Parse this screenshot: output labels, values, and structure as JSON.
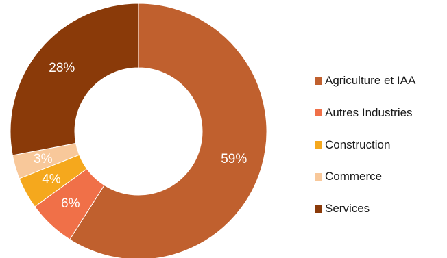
{
  "chart_data": {
    "type": "pie",
    "subtype": "donut",
    "title": "",
    "legend_position": "right",
    "slices": [
      {
        "name": "Agriculture et IAA",
        "value": 59,
        "label": "59%",
        "color": "#c0602e"
      },
      {
        "name": "Autres Industries",
        "value": 6,
        "label": "6%",
        "color": "#f07048"
      },
      {
        "name": "Construction",
        "value": 4,
        "label": "4%",
        "color": "#f5a81d"
      },
      {
        "name": "Commerce",
        "value": 3,
        "label": "3%",
        "color": "#f8c89a"
      },
      {
        "name": "Services",
        "value": 28,
        "label": "28%",
        "color": "#8a3a09"
      }
    ]
  }
}
